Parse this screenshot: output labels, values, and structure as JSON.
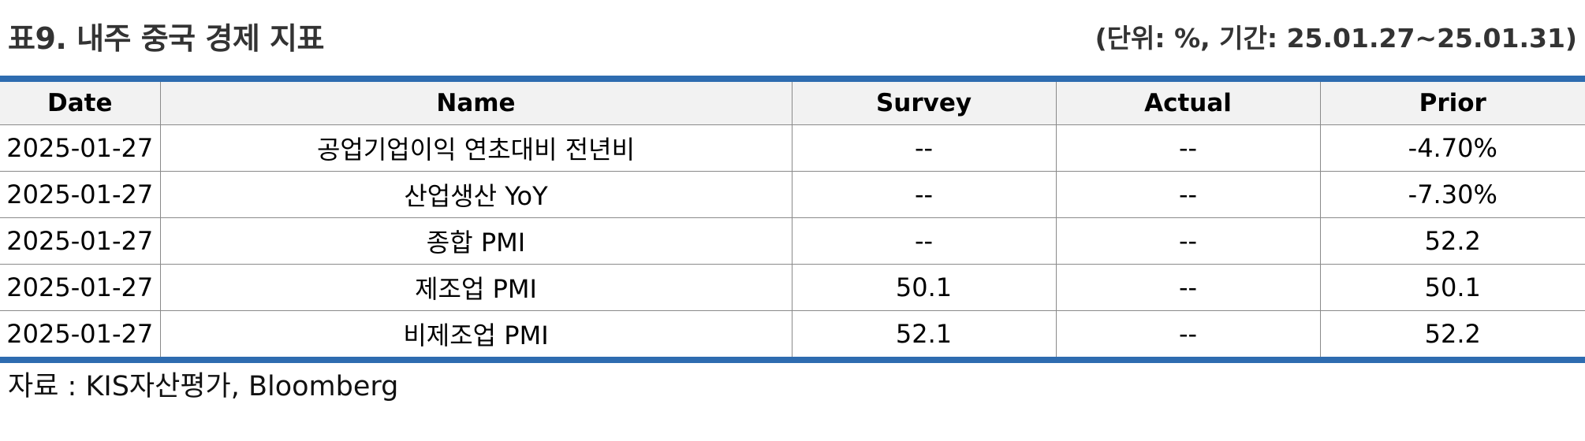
{
  "header": {
    "title": "표9. 내주 중국 경제 지표",
    "unit_note": "(단위: %, 기간: 25.01.27~25.01.31)"
  },
  "table": {
    "columns": [
      "Date",
      "Name",
      "Survey",
      "Actual",
      "Prior"
    ],
    "rows": [
      {
        "date": "2025-01-27",
        "name": "공업기업이익 연초대비 전년비",
        "survey": "--",
        "actual": "--",
        "prior": "-4.70%"
      },
      {
        "date": "2025-01-27",
        "name": "산업생산 YoY",
        "survey": "--",
        "actual": "--",
        "prior": "-7.30%"
      },
      {
        "date": "2025-01-27",
        "name": "종합 PMI",
        "survey": "--",
        "actual": "--",
        "prior": "52.2"
      },
      {
        "date": "2025-01-27",
        "name": "제조업 PMI",
        "survey": "50.1",
        "actual": "--",
        "prior": "50.1"
      },
      {
        "date": "2025-01-27",
        "name": "비제조업 PMI",
        "survey": "52.1",
        "actual": "--",
        "prior": "52.2"
      }
    ]
  },
  "footer": {
    "source": "자료 : KIS자산평가, Bloomberg"
  },
  "colors": {
    "accent_border": "#2e6cb0",
    "header_bg": "#f2f2f2"
  }
}
